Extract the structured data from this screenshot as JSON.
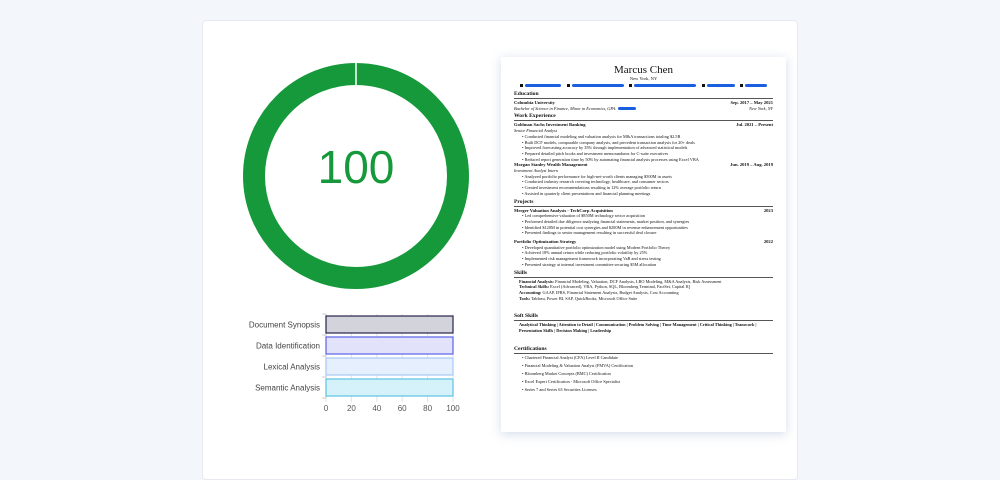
{
  "score": {
    "value": "100",
    "fraction": 1.0,
    "color": "#16993b"
  },
  "chart_data": {
    "type": "bar",
    "orientation": "horizontal",
    "categories": [
      "Document Synopsis",
      "Data Identification",
      "Lexical Analysis",
      "Semantic Analysis"
    ],
    "values": [
      100,
      100,
      100,
      100
    ],
    "xlim": [
      0,
      100
    ],
    "xticks": [
      "0",
      "20",
      "40",
      "60",
      "80",
      "100"
    ],
    "grid": true,
    "colors": [
      {
        "fill": "#d3d3dc",
        "stroke": "#24234a"
      },
      {
        "fill": "#e2e3fb",
        "stroke": "#5b62e8"
      },
      {
        "fill": "#e5effd",
        "stroke": "#a8c8f4"
      },
      {
        "fill": "#d5f1fa",
        "stroke": "#5bc3e3"
      }
    ]
  },
  "resume": {
    "name": "Marcus Chen",
    "location": "New York, NY",
    "sections": {
      "education": "Education",
      "work": "Work Experience",
      "projects": "Projects",
      "skills": "Skills",
      "soft": "Soft Skills",
      "certs": "Certifications"
    },
    "edu": {
      "school": "Columbia University",
      "dates": "Sep. 2017 – May 2021",
      "degree": "Bachelor of Science in Finance, Minor in Economics, GPA:",
      "place": "New York, NY"
    },
    "jobs": [
      {
        "org": "Goldman Sachs Investment Banking",
        "dates": "Jul. 2021 – Present",
        "title": "Senior Financial Analyst",
        "bullets": [
          "Conducted financial modeling and valuation analysis for M&A transactions totaling $2.5B",
          "Built DCF models, comparable company analysis, and precedent transaction analysis for 20+ deals",
          "Improved forecasting accuracy by 35% through implementation of advanced statistical models",
          "Prepared detailed pitch books and investment memorandums for C-suite executives",
          "Reduced report generation time by 50% by automating financial analysis processes using Excel VBA"
        ]
      },
      {
        "org": "Morgan Stanley Wealth Management",
        "dates": "Jun. 2019 – Aug. 2019",
        "title": "Investment Analyst Intern",
        "bullets": [
          "Analyzed portfolio performance for high-net-worth clients managing $500M in assets",
          "Conducted industry research covering technology, healthcare, and consumer sectors",
          "Created investment recommendations resulting in 12% average portfolio return",
          "Assisted in quarterly client presentations and financial planning meetings"
        ]
      }
    ],
    "projects": [
      {
        "name": "Merger Valuation Analysis - TechCorp Acquisition",
        "year": "2023",
        "bullets": [
          "Led comprehensive valuation of $850M technology sector acquisition",
          "Performed detailed due diligence analyzing financial statements, market position, and synergies",
          "Identified $120M in potential cost synergies and $200M in revenue enhancement opportunities",
          "Presented findings to senior management resulting in successful deal closure"
        ]
      },
      {
        "name": "Portfolio Optimization Strategy",
        "year": "2022",
        "bullets": [
          "Developed quantitative portfolio optimization model using Modern Portfolio Theory",
          "Achieved 18% annual return while reducing portfolio volatility by 25%",
          "Implemented risk management framework incorporating VaR and stress testing",
          "Presented strategy at internal investment committee securing $5M allocation"
        ]
      }
    ],
    "skills": [
      {
        "label": "Financial Analysis:",
        "value": "Financial Modeling, Valuation, DCF Analysis, LBO Modeling, M&A Analysis, Risk Assessment"
      },
      {
        "label": "Technical Skills:",
        "value": "Excel (Advanced), VBA, Python, SQL, Bloomberg Terminal, FactSet, Capital IQ"
      },
      {
        "label": "Accounting:",
        "value": "GAAP, IFRS, Financial Statement Analysis, Budget Analysis, Cost Accounting"
      },
      {
        "label": "Tools:",
        "value": "Tableau, Power BI, SAP, QuickBooks, Microsoft Office Suite"
      }
    ],
    "soft_skills": "Analytical Thinking | Attention to Detail | Communication | Problem Solving | Time Management | Critical Thinking | Teamwork | Presentation Skills | Decision Making | Leadership",
    "certs": [
      "Chartered Financial Analyst (CFA) Level II Candidate",
      "Financial Modeling & Valuation Analyst (FMVA) Certification",
      "Bloomberg Market Concepts (BMC) Certification",
      "Excel Expert Certification - Microsoft Office Specialist",
      "Series 7 and Series 63 Securities Licenses"
    ]
  }
}
